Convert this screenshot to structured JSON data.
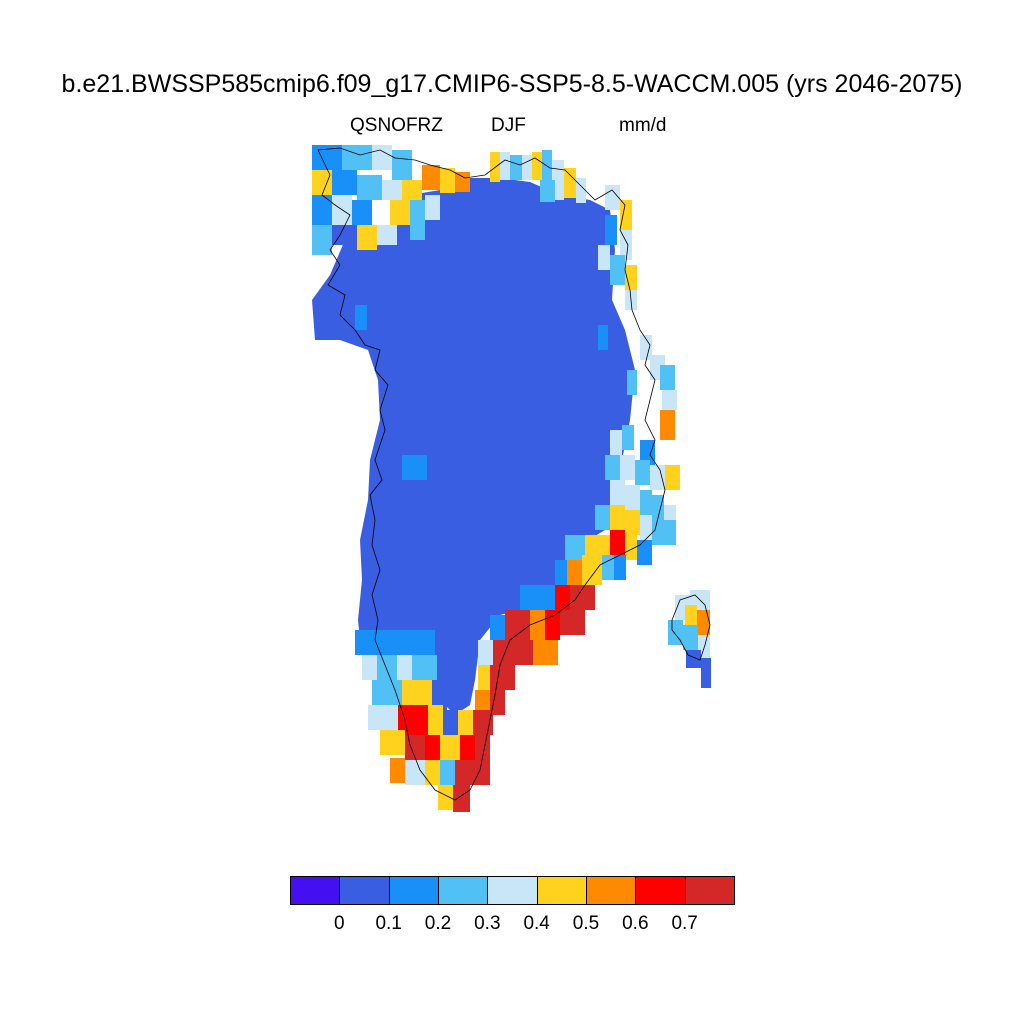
{
  "title": "b.e21.BWSSP585cmip6.f09_g17.CMIP6-SSP5-8.5-WACCM.005 (yrs 2046-2075)",
  "variable": "QSNOFRZ",
  "season": "DJF",
  "units": "mm/d",
  "colorbar": {
    "colors": [
      "#4410f2",
      "#3a5ee1",
      "#1890f8",
      "#50c0f5",
      "#c8e6f8",
      "#ffd21e",
      "#ff8a00",
      "#ff0000",
      "#d42828"
    ],
    "labels": [
      "0",
      "0.1",
      "0.2",
      "0.3",
      "0.4",
      "0.5",
      "0.6",
      "0.7"
    ]
  }
}
